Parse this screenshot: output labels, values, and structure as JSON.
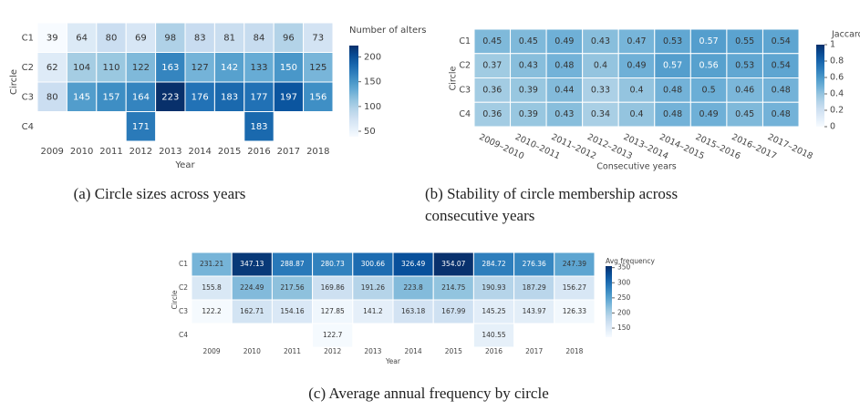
{
  "chart_data": [
    {
      "type": "heatmap",
      "x_label": "Year",
      "y_label": "Circle",
      "categories": [
        "2009",
        "2010",
        "2011",
        "2012",
        "2013",
        "2014",
        "2015",
        "2016",
        "2017",
        "2018"
      ],
      "rows": [
        "C1",
        "C2",
        "C3",
        "C4"
      ],
      "values": [
        [
          39,
          64,
          80,
          69,
          98,
          83,
          81,
          84,
          96,
          73
        ],
        [
          62,
          104,
          110,
          122,
          163,
          127,
          142,
          133,
          150,
          125
        ],
        [
          80,
          145,
          157,
          164,
          223,
          176,
          183,
          177,
          197,
          156
        ],
        [
          null,
          null,
          null,
          171,
          null,
          null,
          null,
          183,
          null,
          null
        ]
      ],
      "colorbar_title": "Number of alters",
      "zlim": [
        39,
        223
      ],
      "zticks": [
        50,
        100,
        150,
        200
      ],
      "caption": [
        "(a) Circle sizes across years"
      ]
    },
    {
      "type": "heatmap",
      "x_label": "Consecutive years",
      "y_label": "Circle",
      "categories": [
        "2009–2010",
        "2010–2011",
        "2011–2012",
        "2012–2013",
        "2013–2014",
        "2014–2015",
        "2015–2016",
        "2016–2017",
        "2017–2018"
      ],
      "rows": [
        "C1",
        "C2",
        "C3",
        "C4"
      ],
      "values": [
        [
          0.45,
          0.45,
          0.49,
          0.43,
          0.47,
          0.53,
          0.57,
          0.55,
          0.54
        ],
        [
          0.37,
          0.43,
          0.48,
          0.4,
          0.49,
          0.57,
          0.56,
          0.53,
          0.54
        ],
        [
          0.36,
          0.39,
          0.44,
          0.33,
          0.4,
          0.48,
          0.5,
          0.46,
          0.48
        ],
        [
          0.36,
          0.39,
          0.43,
          0.34,
          0.4,
          0.48,
          0.49,
          0.45,
          0.48
        ]
      ],
      "colorbar_title": "Jaccard",
      "zlim": [
        0,
        1
      ],
      "zticks": [
        0,
        0.2,
        0.4,
        0.6,
        0.8,
        1
      ],
      "caption": [
        "(b) Stability of circle membership across",
        "consecutive years"
      ]
    },
    {
      "type": "heatmap",
      "x_label": "Year",
      "y_label": "Circle",
      "categories": [
        "2009",
        "2010",
        "2011",
        "2012",
        "2013",
        "2014",
        "2015",
        "2016",
        "2017",
        "2018"
      ],
      "rows": [
        "C1",
        "C2",
        "C3",
        "C4"
      ],
      "values": [
        [
          231.21,
          347.13,
          288.87,
          280.73,
          300.66,
          326.49,
          354.07,
          284.72,
          276.36,
          247.39
        ],
        [
          155.8,
          224.49,
          217.56,
          169.86,
          191.26,
          223.8,
          214.75,
          190.93,
          187.29,
          156.27
        ],
        [
          122.2,
          162.71,
          154.16,
          127.85,
          141.2,
          163.18,
          167.99,
          145.25,
          143.97,
          126.33
        ],
        [
          null,
          null,
          null,
          122.7,
          null,
          null,
          null,
          140.55,
          null,
          null
        ]
      ],
      "colorbar_title": "Avg frequency",
      "zlim": [
        120,
        355
      ],
      "zticks": [
        150,
        200,
        250,
        300,
        350
      ],
      "caption": [
        "(c) Average annual frequency by circle"
      ]
    }
  ]
}
